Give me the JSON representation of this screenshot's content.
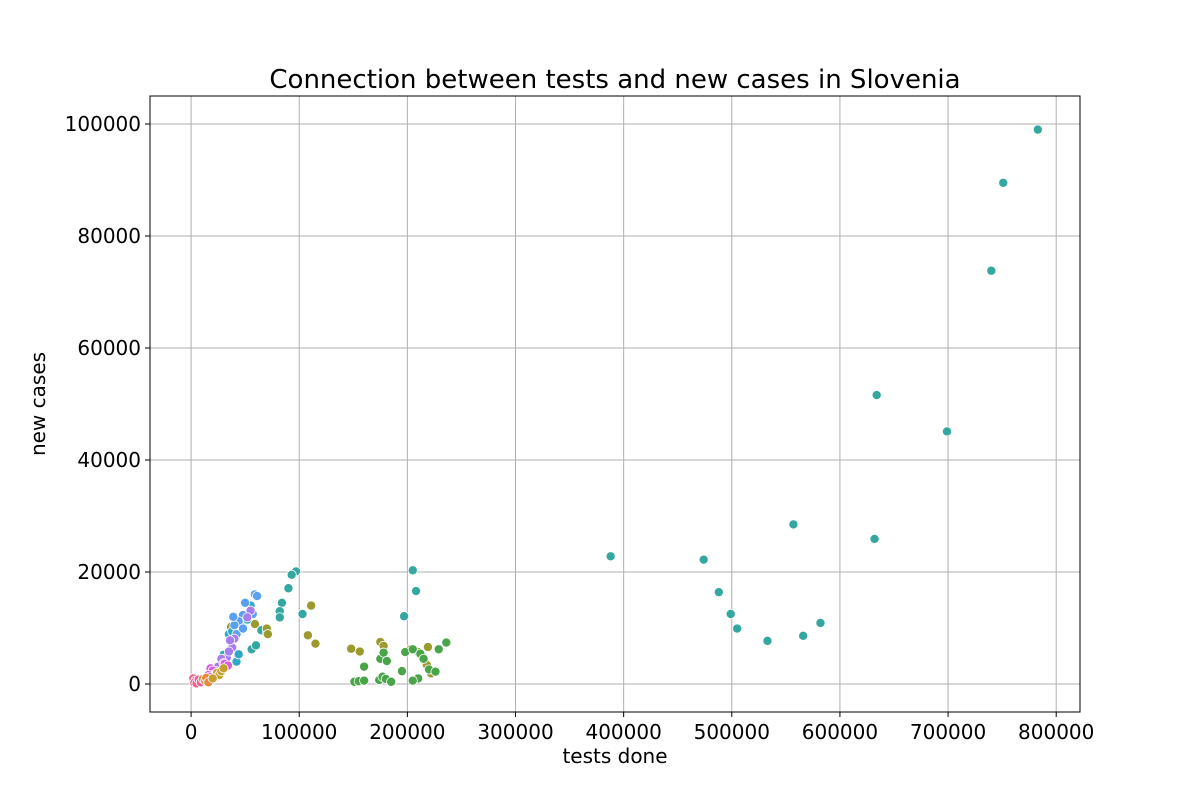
{
  "chart_data": {
    "type": "scatter",
    "title": "Connection between tests and new cases in Slovenia",
    "xlabel": "tests done",
    "ylabel": "new cases",
    "xlim": [
      -38000,
      822000
    ],
    "ylim": [
      -5000,
      105000
    ],
    "xticks": [
      0,
      100000,
      200000,
      300000,
      400000,
      500000,
      600000,
      700000,
      800000
    ],
    "yticks": [
      0,
      20000,
      40000,
      60000,
      80000,
      100000
    ],
    "xtick_labels": [
      "0",
      "100000",
      "200000",
      "300000",
      "400000",
      "500000",
      "600000",
      "700000",
      "800000"
    ],
    "ytick_labels": [
      "0",
      "20000",
      "40000",
      "60000",
      "80000",
      "100000"
    ],
    "grid": true,
    "legend": "none",
    "series": [
      {
        "color": "#34a8a0",
        "points": [
          [
            783000,
            99000
          ],
          [
            751000,
            89500
          ],
          [
            740000,
            73800
          ],
          [
            634000,
            51600
          ],
          [
            699000,
            45100
          ],
          [
            557000,
            28500
          ],
          [
            632000,
            25900
          ],
          [
            388000,
            22800
          ],
          [
            474000,
            22200
          ],
          [
            488000,
            16400
          ],
          [
            499000,
            12500
          ],
          [
            505000,
            9900
          ],
          [
            533000,
            7700
          ],
          [
            566000,
            8600
          ],
          [
            582000,
            10900
          ],
          [
            97000,
            20100
          ],
          [
            93000,
            19500
          ],
          [
            90000,
            17100
          ],
          [
            84000,
            14500
          ],
          [
            82000,
            13000
          ],
          [
            82000,
            11900
          ],
          [
            103000,
            12500
          ],
          [
            205000,
            20300
          ],
          [
            208000,
            16600
          ],
          [
            197000,
            12100
          ],
          [
            56000,
            6200
          ],
          [
            60000,
            6900
          ],
          [
            65000,
            9600
          ],
          [
            70000,
            9000
          ]
        ]
      },
      {
        "color": "#9a9a2e",
        "points": [
          [
            111000,
            14000
          ],
          [
            108000,
            8700
          ],
          [
            115000,
            7200
          ],
          [
            70000,
            9900
          ],
          [
            71000,
            8900
          ],
          [
            148000,
            6300
          ],
          [
            156000,
            5800
          ],
          [
            175000,
            7500
          ],
          [
            178000,
            6800
          ],
          [
            178000,
            5000
          ],
          [
            203000,
            6200
          ],
          [
            210000,
            5700
          ],
          [
            214000,
            4900
          ],
          [
            218000,
            3400
          ],
          [
            219000,
            6600
          ],
          [
            225000,
            2200
          ],
          [
            222000,
            1900
          ],
          [
            59000,
            10700
          ],
          [
            37000,
            10200
          ],
          [
            46000,
            10400
          ]
        ]
      },
      {
        "color": "#4aa54a",
        "points": [
          [
            160000,
            3100
          ],
          [
            175000,
            4500
          ],
          [
            178000,
            5600
          ],
          [
            181000,
            4100
          ],
          [
            195000,
            2300
          ],
          [
            198000,
            5700
          ],
          [
            205000,
            6200
          ],
          [
            210000,
            1000
          ],
          [
            220000,
            2600
          ],
          [
            226000,
            2200
          ],
          [
            229000,
            6200
          ],
          [
            236000,
            7400
          ],
          [
            151000,
            400
          ],
          [
            155000,
            500
          ],
          [
            160000,
            600
          ],
          [
            174000,
            700
          ],
          [
            177000,
            1300
          ],
          [
            180000,
            900
          ],
          [
            185000,
            400
          ],
          [
            205000,
            600
          ],
          [
            212000,
            5400
          ],
          [
            215000,
            4500
          ]
        ]
      },
      {
        "color": "#2fa8c8",
        "points": [
          [
            30000,
            5200
          ],
          [
            35000,
            8900
          ],
          [
            42000,
            4000
          ],
          [
            44000,
            5300
          ],
          [
            52000,
            11500
          ],
          [
            55000,
            14000
          ],
          [
            38000,
            9400
          ],
          [
            28000,
            3600
          ],
          [
            31000,
            4100
          ],
          [
            26000,
            2600
          ]
        ]
      },
      {
        "color": "#5aa0f0",
        "points": [
          [
            59000,
            16000
          ],
          [
            61000,
            15700
          ],
          [
            50000,
            14500
          ],
          [
            57000,
            12500
          ],
          [
            48000,
            12300
          ],
          [
            44000,
            11200
          ],
          [
            40000,
            10500
          ],
          [
            42000,
            8900
          ],
          [
            48000,
            9900
          ],
          [
            39000,
            12000
          ]
        ]
      },
      {
        "color": "#a77ef0",
        "points": [
          [
            55000,
            13100
          ],
          [
            52000,
            11900
          ],
          [
            40000,
            8100
          ],
          [
            38000,
            6500
          ],
          [
            36000,
            7800
          ],
          [
            33000,
            4700
          ],
          [
            28000,
            4500
          ],
          [
            25000,
            3100
          ],
          [
            23000,
            2300
          ],
          [
            27000,
            2000
          ],
          [
            35000,
            5800
          ],
          [
            30000,
            3700
          ]
        ]
      },
      {
        "color": "#d45ee0",
        "points": [
          [
            18000,
            2800
          ],
          [
            20000,
            2400
          ],
          [
            22000,
            1800
          ],
          [
            16000,
            1600
          ],
          [
            21000,
            1200
          ],
          [
            24000,
            1500
          ],
          [
            19000,
            900
          ],
          [
            26000,
            1900
          ],
          [
            14000,
            700
          ],
          [
            31000,
            3600
          ],
          [
            34000,
            3300
          ],
          [
            17000,
            1300
          ]
        ]
      },
      {
        "color": "#ee6090",
        "points": [
          [
            2000,
            1000
          ],
          [
            4000,
            600
          ],
          [
            6000,
            300
          ],
          [
            8000,
            200
          ],
          [
            10000,
            400
          ],
          [
            12000,
            500
          ],
          [
            3000,
            200
          ],
          [
            5000,
            100
          ],
          [
            7000,
            800
          ],
          [
            9000,
            300
          ]
        ]
      },
      {
        "color": "#e8883a",
        "points": [
          [
            11000,
            900
          ],
          [
            13000,
            600
          ],
          [
            15000,
            800
          ],
          [
            17000,
            500
          ],
          [
            14000,
            1100
          ],
          [
            19000,
            700
          ],
          [
            16000,
            300
          ]
        ]
      },
      {
        "color": "#c6a02e",
        "points": [
          [
            22000,
            1200
          ],
          [
            24000,
            2000
          ],
          [
            26000,
            1600
          ],
          [
            20000,
            1000
          ],
          [
            28000,
            2300
          ],
          [
            30000,
            2800
          ]
        ]
      }
    ]
  }
}
